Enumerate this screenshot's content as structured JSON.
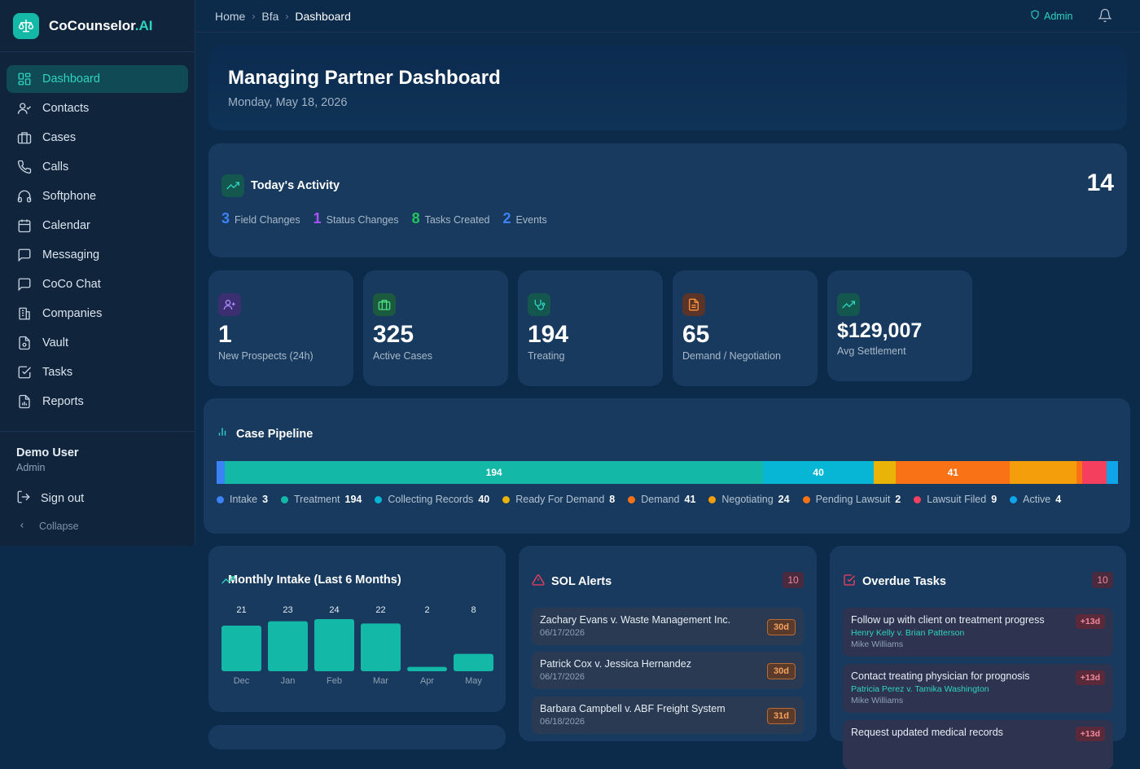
{
  "app": {
    "name": "CoCounselor",
    "name_suffix": ".AI"
  },
  "sidebar": {
    "items": [
      {
        "label": "Dashboard",
        "icon": "dashboard-icon",
        "active": true
      },
      {
        "label": "Contacts",
        "icon": "contacts-icon"
      },
      {
        "label": "Cases",
        "icon": "briefcase-icon"
      },
      {
        "label": "Calls",
        "icon": "phone-icon"
      },
      {
        "label": "Softphone",
        "icon": "headset-icon"
      },
      {
        "label": "Calendar",
        "icon": "calendar-icon"
      },
      {
        "label": "Messaging",
        "icon": "message-icon"
      },
      {
        "label": "CoCo Chat",
        "icon": "chat-icon"
      },
      {
        "label": "Companies",
        "icon": "building-icon"
      },
      {
        "label": "Vault",
        "icon": "vault-file-icon"
      },
      {
        "label": "Tasks",
        "icon": "checkbox-icon"
      },
      {
        "label": "Reports",
        "icon": "report-icon"
      }
    ],
    "user": {
      "name": "Demo User",
      "role": "Admin"
    },
    "sign_out": "Sign out",
    "collapse": "Collapse"
  },
  "topbar": {
    "breadcrumb": [
      "Home",
      "Bfa",
      "Dashboard"
    ],
    "admin_label": "Admin"
  },
  "header": {
    "title": "Managing Partner Dashboard",
    "date": "Monday, May 18, 2026"
  },
  "activity": {
    "title": "Today's Activity",
    "total": "14",
    "stats": [
      {
        "value": "3",
        "label": "Field Changes",
        "color": "#3b82f6"
      },
      {
        "value": "1",
        "label": "Status Changes",
        "color": "#a855f7"
      },
      {
        "value": "8",
        "label": "Tasks Created",
        "color": "#22c55e"
      },
      {
        "value": "2",
        "label": "Events",
        "color": "#3b82f6"
      }
    ]
  },
  "stats": [
    {
      "value": "1",
      "label": "New Prospects (24h)",
      "icon": "user-plus-icon",
      "accent": "#8b5cf6"
    },
    {
      "value": "325",
      "label": "Active Cases",
      "icon": "briefcase-icon",
      "accent": "#22c55e"
    },
    {
      "value": "194",
      "label": "Treating",
      "icon": "stethoscope-icon",
      "accent": "#2dd4bf"
    },
    {
      "value": "65",
      "label": "Demand / Negotiation",
      "icon": "document-icon",
      "accent": "#f97316"
    },
    {
      "value": "$129,007",
      "label": "Avg Settlement",
      "icon": "trending-up-icon",
      "accent": "#2dd4bf"
    }
  ],
  "pipeline": {
    "title": "Case Pipeline",
    "stages": [
      {
        "label": "Intake",
        "count": 3,
        "color": "#3b82f6"
      },
      {
        "label": "Treatment",
        "count": 194,
        "color": "#14b8a6"
      },
      {
        "label": "Collecting Records",
        "count": 40,
        "color": "#06b6d4"
      },
      {
        "label": "Ready For Demand",
        "count": 8,
        "color": "#eab308"
      },
      {
        "label": "Demand",
        "count": 41,
        "color": "#f97316"
      },
      {
        "label": "Negotiating",
        "count": 24,
        "color": "#f59e0b"
      },
      {
        "label": "Pending Lawsuit",
        "count": 2,
        "color": "#f97316"
      },
      {
        "label": "Lawsuit Filed",
        "count": 9,
        "color": "#f43f5e"
      },
      {
        "label": "Active",
        "count": 4,
        "color": "#0ea5e9"
      }
    ]
  },
  "intake": {
    "title": "Monthly Intake (Last 6 Months)",
    "chart_data": {
      "type": "bar",
      "title": "Monthly Intake (Last 6 Months)",
      "categories": [
        "Dec",
        "Jan",
        "Feb",
        "Mar",
        "Apr",
        "May"
      ],
      "values": [
        21,
        23,
        24,
        22,
        2,
        8
      ]
    }
  },
  "sol": {
    "title": "SOL Alerts",
    "count": "10",
    "items": [
      {
        "name": "Zachary Evans v. Waste Management Inc.",
        "date": "06/17/2026",
        "days": "30d"
      },
      {
        "name": "Patrick Cox v. Jessica Hernandez",
        "date": "06/17/2026",
        "days": "30d"
      },
      {
        "name": "Barbara Campbell v. ABF Freight System",
        "date": "06/18/2026",
        "days": "31d"
      }
    ]
  },
  "tasks": {
    "title": "Overdue Tasks",
    "count": "10",
    "items": [
      {
        "title": "Follow up with client on treatment progress",
        "case": "Henry Kelly v. Brian Patterson",
        "owner": "Mike Williams",
        "overdue": "+13d"
      },
      {
        "title": "Contact treating physician for prognosis",
        "case": "Patricia Perez v. Tamika Washington",
        "owner": "Mike Williams",
        "overdue": "+13d"
      },
      {
        "title": "Request updated medical records",
        "case": "",
        "owner": "",
        "overdue": "+13d"
      }
    ]
  }
}
